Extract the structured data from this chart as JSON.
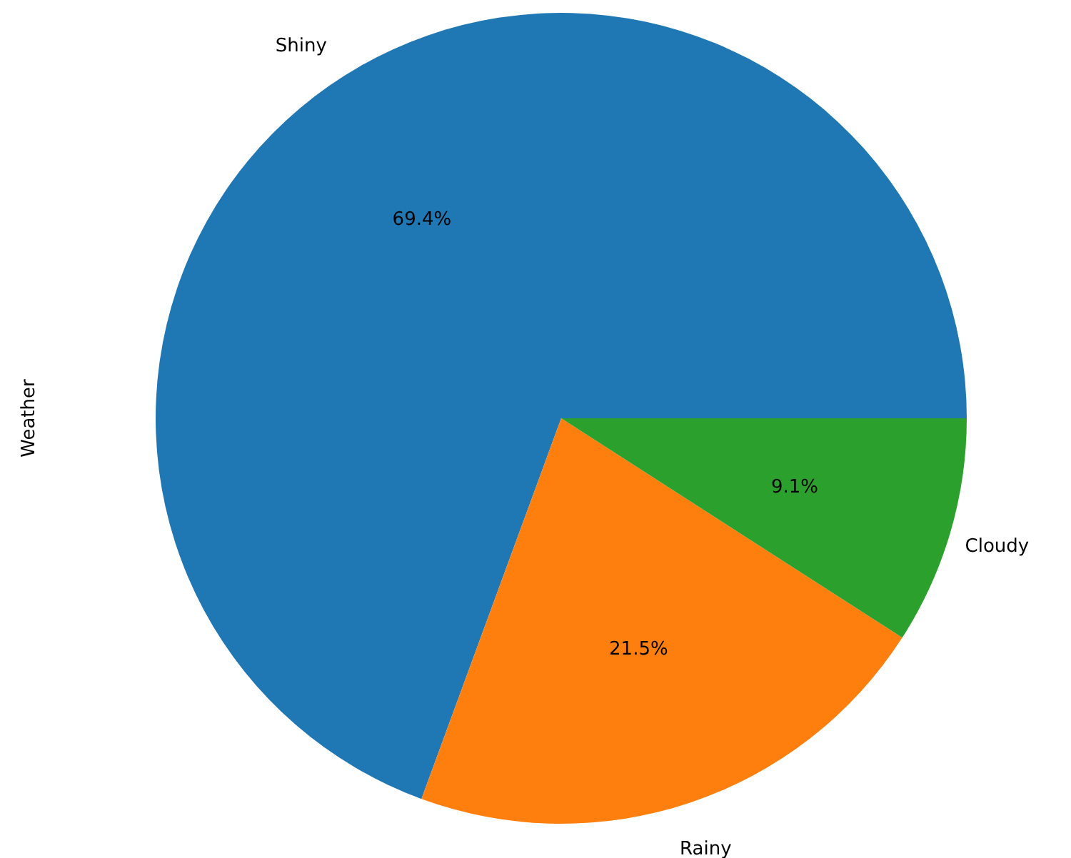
{
  "chart_data": {
    "type": "pie",
    "ylabel": "Weather",
    "categories": [
      "Shiny",
      "Rainy",
      "Cloudy"
    ],
    "values": [
      69.4,
      21.5,
      9.1
    ],
    "colors": [
      "#1f77b4",
      "#ff7f0e",
      "#2ca02c"
    ],
    "value_labels": [
      "69.4%",
      "21.5%",
      "9.1%"
    ]
  }
}
